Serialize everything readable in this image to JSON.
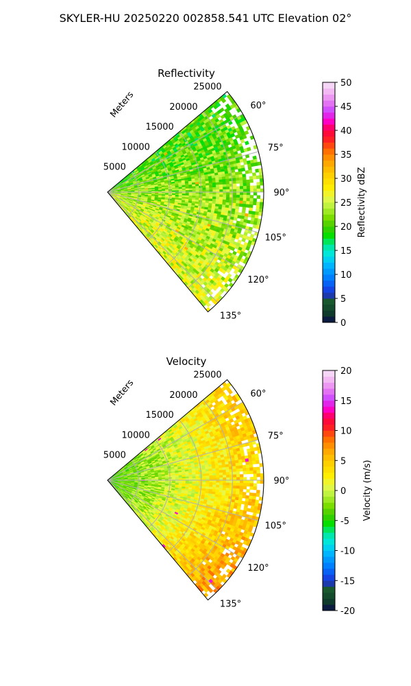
{
  "figure": {
    "suptitle": "SKYLER-HU  20250220  002858.541 UTC Elevation 02°"
  },
  "chart_data": [
    {
      "type": "heatmap",
      "projection": "polar-sector",
      "title": "Reflectivity",
      "range_axis_label": "Meters",
      "range_ticks": [
        5000,
        10000,
        15000,
        20000,
        25000
      ],
      "range_max_m": 25000,
      "azimuth_range_deg": [
        50,
        140
      ],
      "azimuth_ticks": [
        "60°",
        "75°",
        "90°",
        "105°",
        "120°",
        "135°"
      ],
      "grid": true,
      "colorbar": {
        "label": "Reflectivity dBZ",
        "min": 0,
        "max": 50,
        "ticks": [
          0,
          5,
          10,
          15,
          20,
          25,
          30,
          35,
          40,
          45,
          50
        ]
      },
      "field_description": {
        "typical_value_range": [
          18,
          30
        ],
        "near_radar_dominant": 22,
        "north_sector_dominant": 20,
        "south_sector_dominant": 26,
        "hot_spots_max": 38
      }
    },
    {
      "type": "heatmap",
      "projection": "polar-sector",
      "title": "Velocity",
      "range_axis_label": "Meters",
      "range_ticks": [
        5000,
        10000,
        15000,
        20000,
        25000
      ],
      "range_max_m": 25000,
      "azimuth_range_deg": [
        50,
        140
      ],
      "azimuth_ticks": [
        "60°",
        "75°",
        "90°",
        "105°",
        "120°",
        "135°"
      ],
      "grid": true,
      "colorbar": {
        "label": "Velocity (m/s)",
        "min": -20,
        "max": 20,
        "ticks": [
          -20,
          -15,
          -10,
          -5,
          0,
          5,
          10,
          15,
          20
        ]
      },
      "field_description": {
        "typical_value_range": [
          -5,
          10
        ],
        "near_radar_dominant": -4,
        "far_range_dominant": 4,
        "south_far_sector_dominant": 7,
        "hot_spots_max": 14
      }
    }
  ]
}
